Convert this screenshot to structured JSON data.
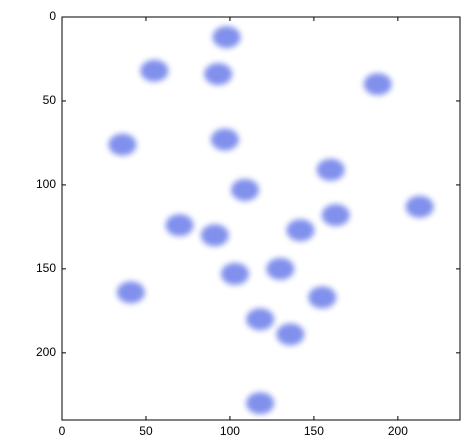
{
  "chart_data": {
    "type": "image",
    "x": [
      98,
      55,
      93,
      188,
      36,
      97,
      109,
      160,
      163,
      70,
      91,
      142,
      103,
      130,
      118,
      136,
      155,
      41,
      118,
      213
    ],
    "y": [
      12,
      32,
      34,
      40,
      76,
      73,
      103,
      91,
      118,
      124,
      130,
      127,
      153,
      150,
      180,
      189,
      167,
      164,
      230,
      113
    ],
    "color": "#6b7de9",
    "xlim": [
      0,
      237
    ],
    "ylim": [
      0,
      240
    ],
    "xticks": [
      0,
      50,
      100,
      150,
      200
    ],
    "yticks": [
      0,
      50,
      100,
      150,
      200
    ],
    "y_reversed": true
  }
}
